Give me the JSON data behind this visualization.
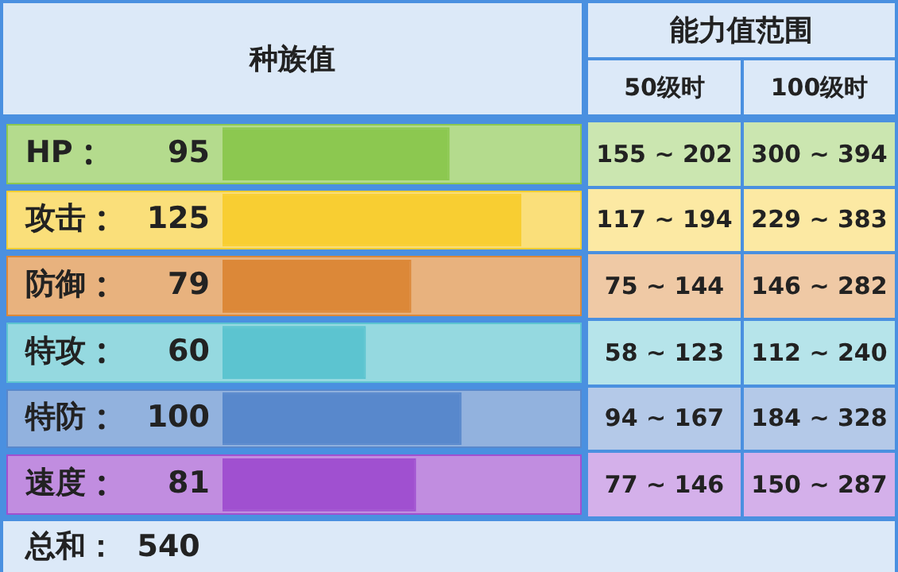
{
  "chart_data": {
    "type": "bar",
    "orientation": "horizontal",
    "categories": [
      "HP",
      "攻击",
      "防御",
      "特攻",
      "特防",
      "速度"
    ],
    "values": [
      95,
      125,
      79,
      60,
      100,
      81
    ],
    "colors": [
      "#8cc850",
      "#f8ce32",
      "#dc8838",
      "#5cc4d0",
      "#5888cc",
      "#a050d0"
    ],
    "legend": false,
    "data_labels": true,
    "annotations": [
      "种族值",
      "能力值范围",
      "50级时",
      "100级时",
      "155 ~ 202",
      "300 ~ 394",
      "117 ~ 194",
      "229 ~ 383",
      "75 ~ 144",
      "146 ~ 282",
      "58 ~ 123",
      "112 ~ 240",
      "94 ~ 167",
      "184 ~ 328",
      "77 ~ 146",
      "150 ~ 287",
      "总和：  540"
    ]
  }
}
